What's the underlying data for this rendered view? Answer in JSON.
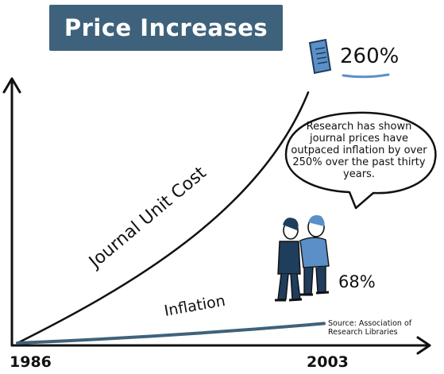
{
  "title": "Price Increases",
  "colors": {
    "title_bg": "#3f627c",
    "inflation_line": "#3f627c",
    "cost_line": "#111111",
    "accent_blue": "#5b8fc7"
  },
  "callout": {
    "text": "Research has shown journal prices have outpaced inflation by over 250% over the past thirty years."
  },
  "source": "Source: Association of Research Libraries",
  "icons": [
    "journal-icon",
    "people-illustration"
  ],
  "chart_data": {
    "type": "line",
    "title": "Price Increases",
    "x": [
      "1986",
      "2003"
    ],
    "x_tick_labels": [
      "1986",
      "2003"
    ],
    "series": [
      {
        "name": "Journal Unit Cost",
        "end_label": "260%",
        "values": [
          0,
          260
        ]
      },
      {
        "name": "Inflation",
        "end_label": "68%",
        "values": [
          0,
          68
        ]
      }
    ],
    "ylim": [
      0,
      280
    ],
    "grid": false,
    "legend": "none",
    "xlabel": "",
    "ylabel": ""
  }
}
